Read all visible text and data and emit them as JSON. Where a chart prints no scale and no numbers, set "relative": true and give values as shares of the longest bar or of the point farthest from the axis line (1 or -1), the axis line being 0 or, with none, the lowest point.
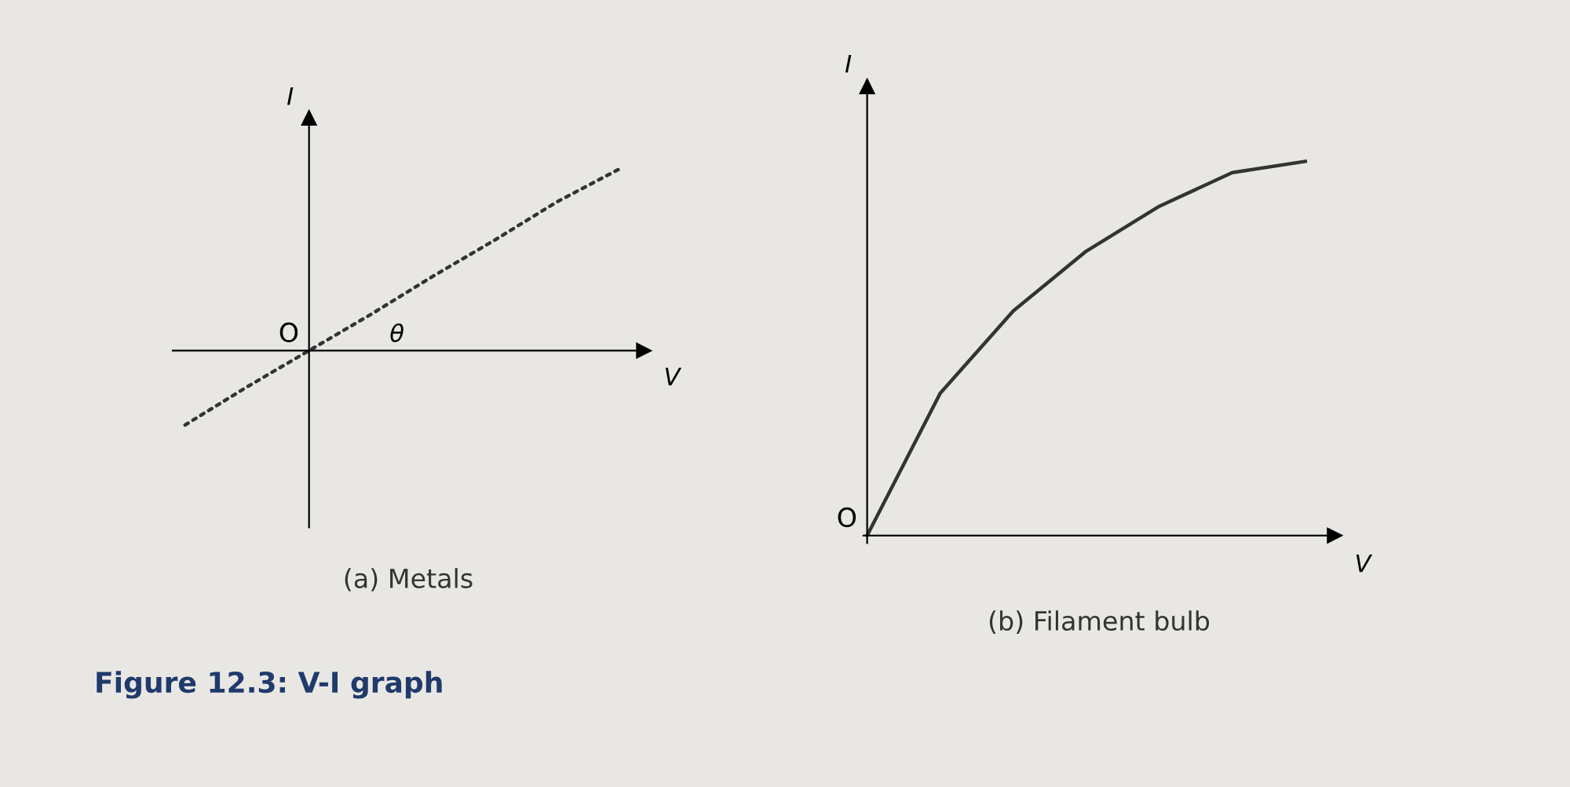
{
  "chart_data": [
    {
      "type": "line",
      "title": "(a) Metals",
      "xlabel": "V",
      "ylabel": "I",
      "relative": true,
      "categories": [
        null,
        null,
        null,
        null,
        null,
        null,
        null,
        null
      ],
      "series": [
        {
          "color": "#333333",
          "values": [
            -0.41,
            -0.2,
            0,
            0.2,
            0.41,
            0.61,
            0.82,
            1.0
          ]
        }
      ],
      "line_style": "dotted",
      "marker": "none",
      "grid": false,
      "legend": false,
      "annotations": [
        "O",
        "θ",
        "Figure 12.3: V-I graph"
      ]
    },
    {
      "type": "line",
      "title": "(b) Filament bulb",
      "xlabel": "V",
      "ylabel": "I",
      "relative": true,
      "categories": [
        null,
        null,
        null,
        null,
        null,
        null,
        null
      ],
      "series": [
        {
          "color": "#333333",
          "values": [
            0,
            0.38,
            0.6,
            0.76,
            0.88,
            0.97,
            1.0
          ]
        }
      ],
      "line_style": "solid",
      "marker": "none",
      "grid": false,
      "legend": false,
      "annotations": [
        "O"
      ]
    }
  ]
}
